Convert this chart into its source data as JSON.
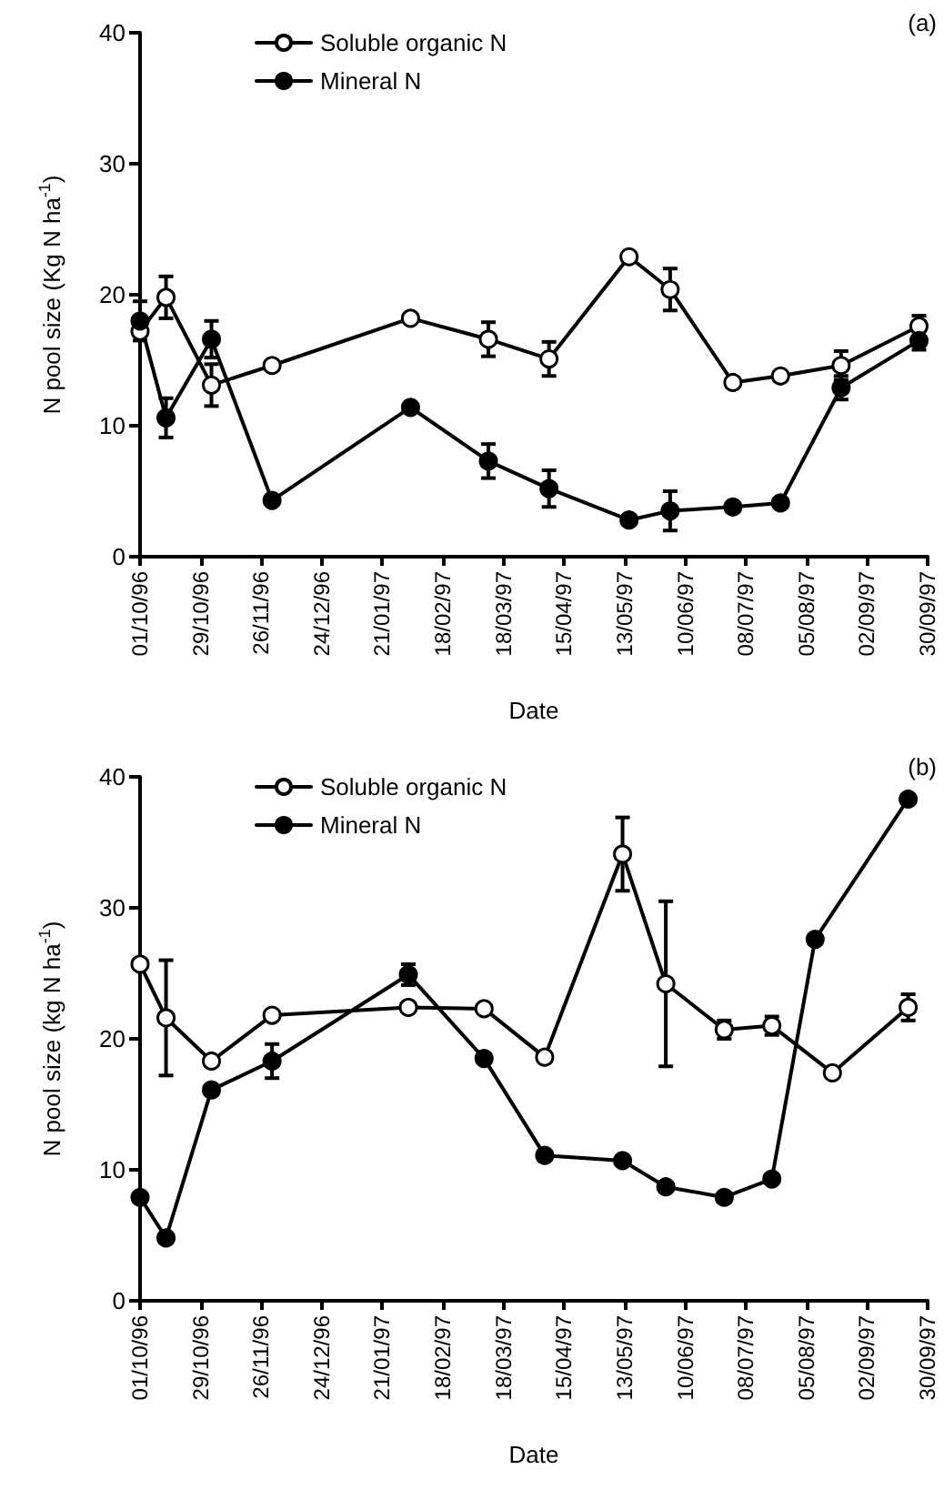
{
  "chart_data": [
    {
      "type": "line",
      "xlabel": "Date",
      "ylabel": "N pool size (Kg N ha$^{-1}$)",
      "annotations": [
        "(a)"
      ],
      "xlim": [
        "1996-10-01",
        "1997-09-30"
      ],
      "xticks": [
        {
          "value": "1996-10-01",
          "label": "01/10/96"
        },
        {
          "value": "1996-10-29",
          "label": "29/10/96"
        },
        {
          "value": "1996-11-26",
          "label": "26/11/96"
        },
        {
          "value": "1996-12-24",
          "label": "24/12/96"
        },
        {
          "value": "1997-01-21",
          "label": "21/01/97"
        },
        {
          "value": "1997-02-18",
          "label": "18/02/97"
        },
        {
          "value": "1997-03-18",
          "label": "18/03/97"
        },
        {
          "value": "1997-04-15",
          "label": "15/04/97"
        },
        {
          "value": "1997-05-13",
          "label": "13/05/97"
        },
        {
          "value": "1997-06-10",
          "label": "10/06/97"
        },
        {
          "value": "1997-07-08",
          "label": "08/07/97"
        },
        {
          "value": "1997-08-05",
          "label": "05/08/97"
        },
        {
          "value": "1997-09-02",
          "label": "02/09/97"
        },
        {
          "value": "1997-09-30",
          "label": "30/09/97"
        }
      ],
      "ylim": [
        0,
        40
      ],
      "yticks": [
        0,
        10,
        20,
        30,
        40
      ],
      "grid": false,
      "legend": "top left",
      "marker": "circle",
      "line_style": "solid",
      "series": [
        {
          "name": "Soluble organic N",
          "color": "#ffffff",
          "x": [
            "1996-10-01",
            "1996-10-13",
            "1996-11-03",
            "1996-12-01",
            "1997-02-03",
            "1997-03-11",
            "1997-04-08",
            "1997-05-15",
            "1997-06-03",
            "1997-07-02",
            "1997-07-24",
            "1997-08-21",
            "1997-09-26"
          ],
          "values": [
            17.2,
            19.8,
            13.1,
            14.6,
            18.2,
            16.6,
            15.1,
            22.9,
            20.4,
            13.3,
            13.8,
            14.6,
            17.6
          ],
          "errors": [
            null,
            1.6,
            1.6,
            null,
            null,
            1.3,
            1.3,
            null,
            1.6,
            null,
            null,
            1.1,
            0.8
          ]
        },
        {
          "name": "Mineral N",
          "color": "#000000",
          "x": [
            "1996-10-01",
            "1996-10-13",
            "1996-11-03",
            "1996-12-01",
            "1997-02-03",
            "1997-03-11",
            "1997-04-08",
            "1997-05-15",
            "1997-06-03",
            "1997-07-02",
            "1997-07-24",
            "1997-08-21",
            "1997-09-26"
          ],
          "values": [
            18.0,
            10.6,
            16.6,
            4.3,
            11.4,
            7.3,
            5.2,
            2.8,
            3.5,
            3.8,
            4.1,
            12.9,
            16.5
          ],
          "errors": [
            1.5,
            1.5,
            1.4,
            null,
            null,
            1.3,
            1.4,
            null,
            1.5,
            null,
            null,
            0.9,
            0.7
          ]
        }
      ]
    },
    {
      "type": "line",
      "xlabel": "Date",
      "ylabel": "N pool size (kg N ha$^{-1}$)",
      "annotations": [
        "(b)"
      ],
      "xlim": [
        "1996-10-01",
        "1997-09-30"
      ],
      "xticks": [
        {
          "value": "1996-10-01",
          "label": "01/10/96"
        },
        {
          "value": "1996-10-29",
          "label": "29/10/96"
        },
        {
          "value": "1996-11-26",
          "label": "26/11/96"
        },
        {
          "value": "1996-12-24",
          "label": "24/12/96"
        },
        {
          "value": "1997-01-21",
          "label": "21/01/97"
        },
        {
          "value": "1997-02-18",
          "label": "18/02/97"
        },
        {
          "value": "1997-03-18",
          "label": "18/03/97"
        },
        {
          "value": "1997-04-15",
          "label": "15/04/97"
        },
        {
          "value": "1997-05-13",
          "label": "13/05/97"
        },
        {
          "value": "1997-06-10",
          "label": "10/06/97"
        },
        {
          "value": "1997-07-08",
          "label": "08/07/97"
        },
        {
          "value": "1997-08-05",
          "label": "05/08/97"
        },
        {
          "value": "1997-09-02",
          "label": "02/09/97"
        },
        {
          "value": "1997-09-30",
          "label": "30/09/97"
        }
      ],
      "ylim": [
        0,
        40
      ],
      "yticks": [
        0,
        10,
        20,
        30,
        40
      ],
      "grid": false,
      "legend": "top left",
      "marker": "circle",
      "line_style": "solid",
      "series": [
        {
          "name": "Soluble organic N",
          "color": "#ffffff",
          "x": [
            "1996-10-01",
            "1996-10-13",
            "1996-11-03",
            "1996-12-01",
            "1997-02-02",
            "1997-03-09",
            "1997-04-06",
            "1997-05-12",
            "1997-06-01",
            "1997-06-28",
            "1997-07-20",
            "1997-08-17",
            "1997-09-21"
          ],
          "values": [
            25.7,
            21.6,
            18.3,
            21.8,
            22.4,
            22.3,
            18.6,
            34.1,
            24.2,
            20.7,
            21.0,
            17.4,
            22.4
          ],
          "errors": [
            null,
            4.4,
            null,
            null,
            null,
            null,
            null,
            2.8,
            6.3,
            0.7,
            0.7,
            null,
            1.0
          ]
        },
        {
          "name": "Mineral N",
          "color": "#000000",
          "x": [
            "1996-10-01",
            "1996-10-13",
            "1996-11-03",
            "1996-12-01",
            "1997-02-02",
            "1997-03-09",
            "1997-04-06",
            "1997-05-12",
            "1997-06-01",
            "1997-06-28",
            "1997-07-20",
            "1997-08-09",
            "1997-09-21"
          ],
          "values": [
            7.9,
            4.8,
            16.1,
            18.3,
            24.9,
            18.5,
            11.1,
            10.7,
            8.7,
            7.9,
            9.3,
            27.6,
            38.3
          ],
          "errors": [
            null,
            null,
            null,
            1.3,
            0.8,
            null,
            null,
            null,
            null,
            null,
            null,
            null,
            null
          ]
        }
      ]
    }
  ]
}
